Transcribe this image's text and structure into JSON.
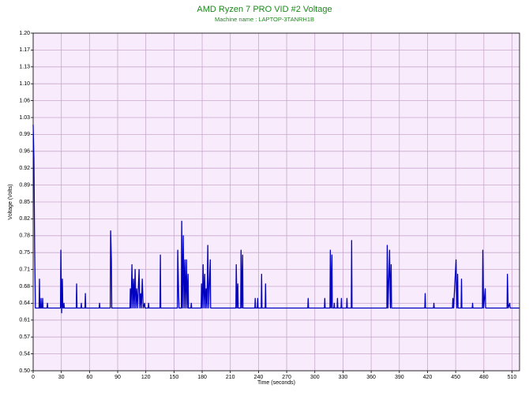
{
  "chart_data": {
    "type": "line",
    "title": "AMD Ryzen 7 PRO VID #2 Voltage",
    "subtitle": "Machine name : LAPTOP-3TANRH1B",
    "x_label": "Time (seconds)",
    "y_label": "Voltage (Volts)",
    "xlim": [
      0,
      518
    ],
    "ylim": [
      0.5,
      1.2
    ],
    "xticks": [
      0,
      30,
      60,
      90,
      120,
      150,
      180,
      210,
      240,
      270,
      300,
      330,
      360,
      390,
      420,
      450,
      480,
      510
    ],
    "yticks": [
      {
        "value": 0.5,
        "label": "0.50"
      },
      {
        "value": 0.535,
        "label": "0.54"
      },
      0.57,
      {
        "value": 0.605,
        "label": "0.61"
      },
      0.64,
      {
        "value": 0.675,
        "label": "0.68"
      },
      0.71,
      {
        "value": 0.745,
        "label": "0.75"
      },
      0.78,
      {
        "value": 0.815,
        "label": "0.82"
      },
      0.85,
      {
        "value": 0.885,
        "label": "0.89"
      },
      0.92,
      {
        "value": 0.955,
        "label": "0.96"
      },
      0.99,
      {
        "value": 1.025,
        "label": "1.03"
      },
      1.06,
      {
        "value": 1.095,
        "label": "1.10"
      },
      1.13,
      {
        "value": 1.165,
        "label": "1.17"
      },
      {
        "value": 1.2,
        "label": "1.20"
      }
    ],
    "grid": true,
    "background": "#f8ecfc",
    "grid_color": "#c8a8cc",
    "x": [
      0,
      0.8,
      1.6,
      2.4,
      6.3,
      6.7,
      7.1,
      8.0,
      8.4,
      8.8,
      9.7,
      10.1,
      10.5,
      14.8,
      15.2,
      15.6,
      29.1,
      29.5,
      30.3,
      31.1,
      31.6,
      32.4,
      32.8,
      33.2,
      45.9,
      46.3,
      46.7,
      50.9,
      51.3,
      51.7,
      55.2,
      55.6,
      56.0,
      70.3,
      70.7,
      71.1,
      82.1,
      82.5,
      83.3,
      83.7,
      103.1,
      103.5,
      104.3,
      105.2,
      106.0,
      106.9,
      107.7,
      108.6,
      109.4,
      110.3,
      111.2,
      112.8,
      113.6,
      114.5,
      115.3,
      116.2,
      117.2,
      118.7,
      119.1,
      122.5,
      122.9,
      123.3,
      135.1,
      135.5,
      135.9,
      153.6,
      154.0,
      154.9,
      155.4,
      157.8,
      158.2,
      159.0,
      159.9,
      160.7,
      161.6,
      162.4,
      163.3,
      164.1,
      165.0,
      165.4,
      168.0,
      168.4,
      168.8,
      178.9,
      179.3,
      180.1,
      181.0,
      181.8,
      182.7,
      183.5,
      184.3,
      185.1,
      186.0,
      186.8,
      188.6,
      189.0,
      215.9,
      216.3,
      217.1,
      218.0,
      218.4,
      221.0,
      221.4,
      222.2,
      223.1,
      223.5,
      236.1,
      236.5,
      236.9,
      238.7,
      239.1,
      239.5,
      242.9,
      243.3,
      243.7,
      247.1,
      247.5,
      247.9,
      292.5,
      292.9,
      293.3,
      310.2,
      310.6,
      311.0,
      316.1,
      316.5,
      317.3,
      318.2,
      318.6,
      320.3,
      320.7,
      321.1,
      323.7,
      324.1,
      324.5,
      327.9,
      328.3,
      328.7,
      333.8,
      334.2,
      334.6,
      338.8,
      339.2,
      339.6,
      376.7,
      377.1,
      377.9,
      379.6,
      380.4,
      381.3,
      381.7,
      417.1,
      417.5,
      417.9,
      426.4,
      426.8,
      427.2,
      446.6,
      447.0,
      447.8,
      450.4,
      451.2,
      452.1,
      452.5,
      455.8,
      456.2,
      456.6,
      467.6,
      468.0,
      468.4,
      478.5,
      478.9,
      479.7,
      481.5,
      481.9,
      504.7,
      505.1,
      505.9,
      507.6,
      508.0,
      518
    ],
    "series": [
      {
        "name": "VID #2 Voltage",
        "color": "#0000c0",
        "values": [
          1.01,
          0.94,
          0.75,
          0.63,
          0.63,
          0.69,
          0.63,
          0.63,
          0.65,
          0.63,
          0.63,
          0.65,
          0.63,
          0.63,
          0.64,
          0.63,
          0.63,
          0.75,
          0.62,
          0.69,
          0.63,
          0.63,
          0.64,
          0.63,
          0.63,
          0.68,
          0.63,
          0.63,
          0.64,
          0.63,
          0.63,
          0.66,
          0.63,
          0.63,
          0.64,
          0.63,
          0.63,
          0.79,
          0.73,
          0.63,
          0.63,
          0.67,
          0.63,
          0.72,
          0.63,
          0.69,
          0.63,
          0.71,
          0.63,
          0.67,
          0.63,
          0.71,
          0.63,
          0.66,
          0.63,
          0.69,
          0.63,
          0.64,
          0.63,
          0.63,
          0.64,
          0.63,
          0.63,
          0.74,
          0.63,
          0.63,
          0.75,
          0.66,
          0.63,
          0.63,
          0.81,
          0.63,
          0.78,
          0.63,
          0.73,
          0.63,
          0.73,
          0.63,
          0.7,
          0.63,
          0.63,
          0.64,
          0.63,
          0.63,
          0.68,
          0.63,
          0.72,
          0.63,
          0.7,
          0.63,
          0.67,
          0.63,
          0.76,
          0.63,
          0.73,
          0.63,
          0.63,
          0.72,
          0.63,
          0.68,
          0.63,
          0.63,
          0.75,
          0.63,
          0.74,
          0.63,
          0.63,
          0.65,
          0.63,
          0.63,
          0.65,
          0.63,
          0.63,
          0.7,
          0.63,
          0.63,
          0.68,
          0.63,
          0.63,
          0.65,
          0.63,
          0.63,
          0.65,
          0.63,
          0.63,
          0.75,
          0.63,
          0.74,
          0.63,
          0.63,
          0.64,
          0.63,
          0.63,
          0.65,
          0.63,
          0.63,
          0.65,
          0.63,
          0.63,
          0.65,
          0.63,
          0.63,
          0.77,
          0.63,
          0.63,
          0.76,
          0.63,
          0.75,
          0.63,
          0.72,
          0.63,
          0.63,
          0.66,
          0.63,
          0.63,
          0.64,
          0.63,
          0.63,
          0.65,
          0.63,
          0.73,
          0.63,
          0.7,
          0.63,
          0.63,
          0.69,
          0.63,
          0.63,
          0.64,
          0.63,
          0.63,
          0.75,
          0.63,
          0.67,
          0.63,
          0.63,
          0.7,
          0.63,
          0.64,
          0.63,
          0.63
        ]
      }
    ]
  }
}
